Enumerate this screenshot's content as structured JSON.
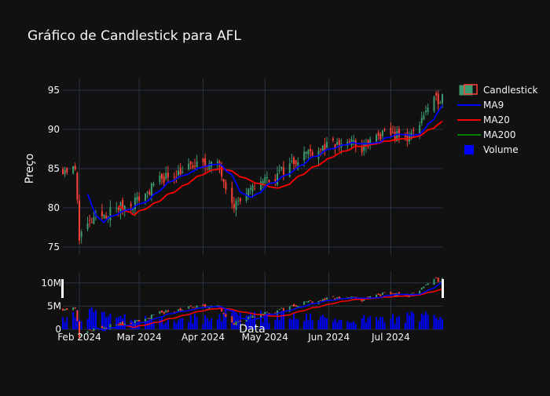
{
  "chart_data": {
    "type": "candlestick",
    "title": "Gráfico de Candlestick para AFL",
    "xlabel": "Data",
    "ylabel": "Preço",
    "price_ylim": [
      74,
      96.5
    ],
    "price_ticks": [
      75,
      80,
      85,
      90,
      95
    ],
    "volume_ylim": [
      0,
      12500000
    ],
    "volume_ticks": [
      {
        "value": 0,
        "label": "0"
      },
      {
        "value": 5000000,
        "label": "5M"
      },
      {
        "value": 10000000,
        "label": "10M"
      }
    ],
    "x_start": "2024-01-24",
    "x_end": "2024-07-26",
    "x_ticks": [
      {
        "date": "2024-02-01",
        "label": "Feb 2024"
      },
      {
        "date": "2024-03-01",
        "label": "Mar 2024"
      },
      {
        "date": "2024-04-01",
        "label": "Apr 2024"
      },
      {
        "date": "2024-05-01",
        "label": "May 2024"
      },
      {
        "date": "2024-06-01",
        "label": "Jun 2024"
      },
      {
        "date": "2024-07-01",
        "label": "Jul 2024"
      }
    ],
    "colors": {
      "up": "#3d9970",
      "down": "#ff4136",
      "ma9": "#0000ff",
      "ma20": "#ff0000",
      "ma200": "#008000",
      "volume": "#0000ff",
      "background": "#111111",
      "grid": "#283442",
      "text": "#f2f5fa"
    },
    "grid": true,
    "legend_placement": "top-right",
    "legend": [
      {
        "name": "Candlestick",
        "kind": "candle"
      },
      {
        "name": "MA9",
        "kind": "line-ma9"
      },
      {
        "name": "MA20",
        "kind": "line-ma20"
      },
      {
        "name": "MA200",
        "kind": "line-ma200"
      },
      {
        "name": "Volume",
        "kind": "square"
      }
    ],
    "close_anchors": [
      [
        "2024-01-24",
        85.0
      ],
      [
        "2024-01-30",
        84.8
      ],
      [
        "2024-02-01",
        76.5
      ],
      [
        "2024-02-06",
        78.0
      ],
      [
        "2024-02-12",
        79.0
      ],
      [
        "2024-02-20",
        80.0
      ],
      [
        "2024-02-26",
        80.5
      ],
      [
        "2024-03-05",
        82.0
      ],
      [
        "2024-03-12",
        83.8
      ],
      [
        "2024-03-19",
        84.5
      ],
      [
        "2024-03-26",
        85.2
      ],
      [
        "2024-04-02",
        85.6
      ],
      [
        "2024-04-09",
        85.3
      ],
      [
        "2024-04-12",
        83.0
      ],
      [
        "2024-04-16",
        80.5
      ],
      [
        "2024-04-22",
        81.5
      ],
      [
        "2024-04-29",
        83.5
      ],
      [
        "2024-05-06",
        84.0
      ],
      [
        "2024-05-13",
        85.5
      ],
      [
        "2024-05-20",
        87.0
      ],
      [
        "2024-05-28",
        87.6
      ],
      [
        "2024-06-04",
        88.0
      ],
      [
        "2024-06-11",
        88.5
      ],
      [
        "2024-06-17",
        87.5
      ],
      [
        "2024-06-24",
        89.0
      ],
      [
        "2024-07-01",
        89.5
      ],
      [
        "2024-07-08",
        88.8
      ],
      [
        "2024-07-12",
        89.5
      ],
      [
        "2024-07-17",
        92.0
      ],
      [
        "2024-07-22",
        93.5
      ],
      [
        "2024-07-26",
        94.2
      ]
    ],
    "volume_profile": [
      [
        "2024-01-24",
        1800000
      ],
      [
        "2024-02-01",
        3500000
      ],
      [
        "2024-02-15",
        2500000
      ],
      [
        "2024-03-01",
        2000000
      ],
      [
        "2024-04-01",
        2200000
      ],
      [
        "2024-04-15",
        3200000
      ],
      [
        "2024-05-01",
        2600000
      ],
      [
        "2024-06-01",
        2000000
      ],
      [
        "2024-07-01",
        2200000
      ],
      [
        "2024-07-26",
        2800000
      ]
    ],
    "ma_windows": {
      "ma9": 9,
      "ma20": 20,
      "ma200": 200
    }
  }
}
